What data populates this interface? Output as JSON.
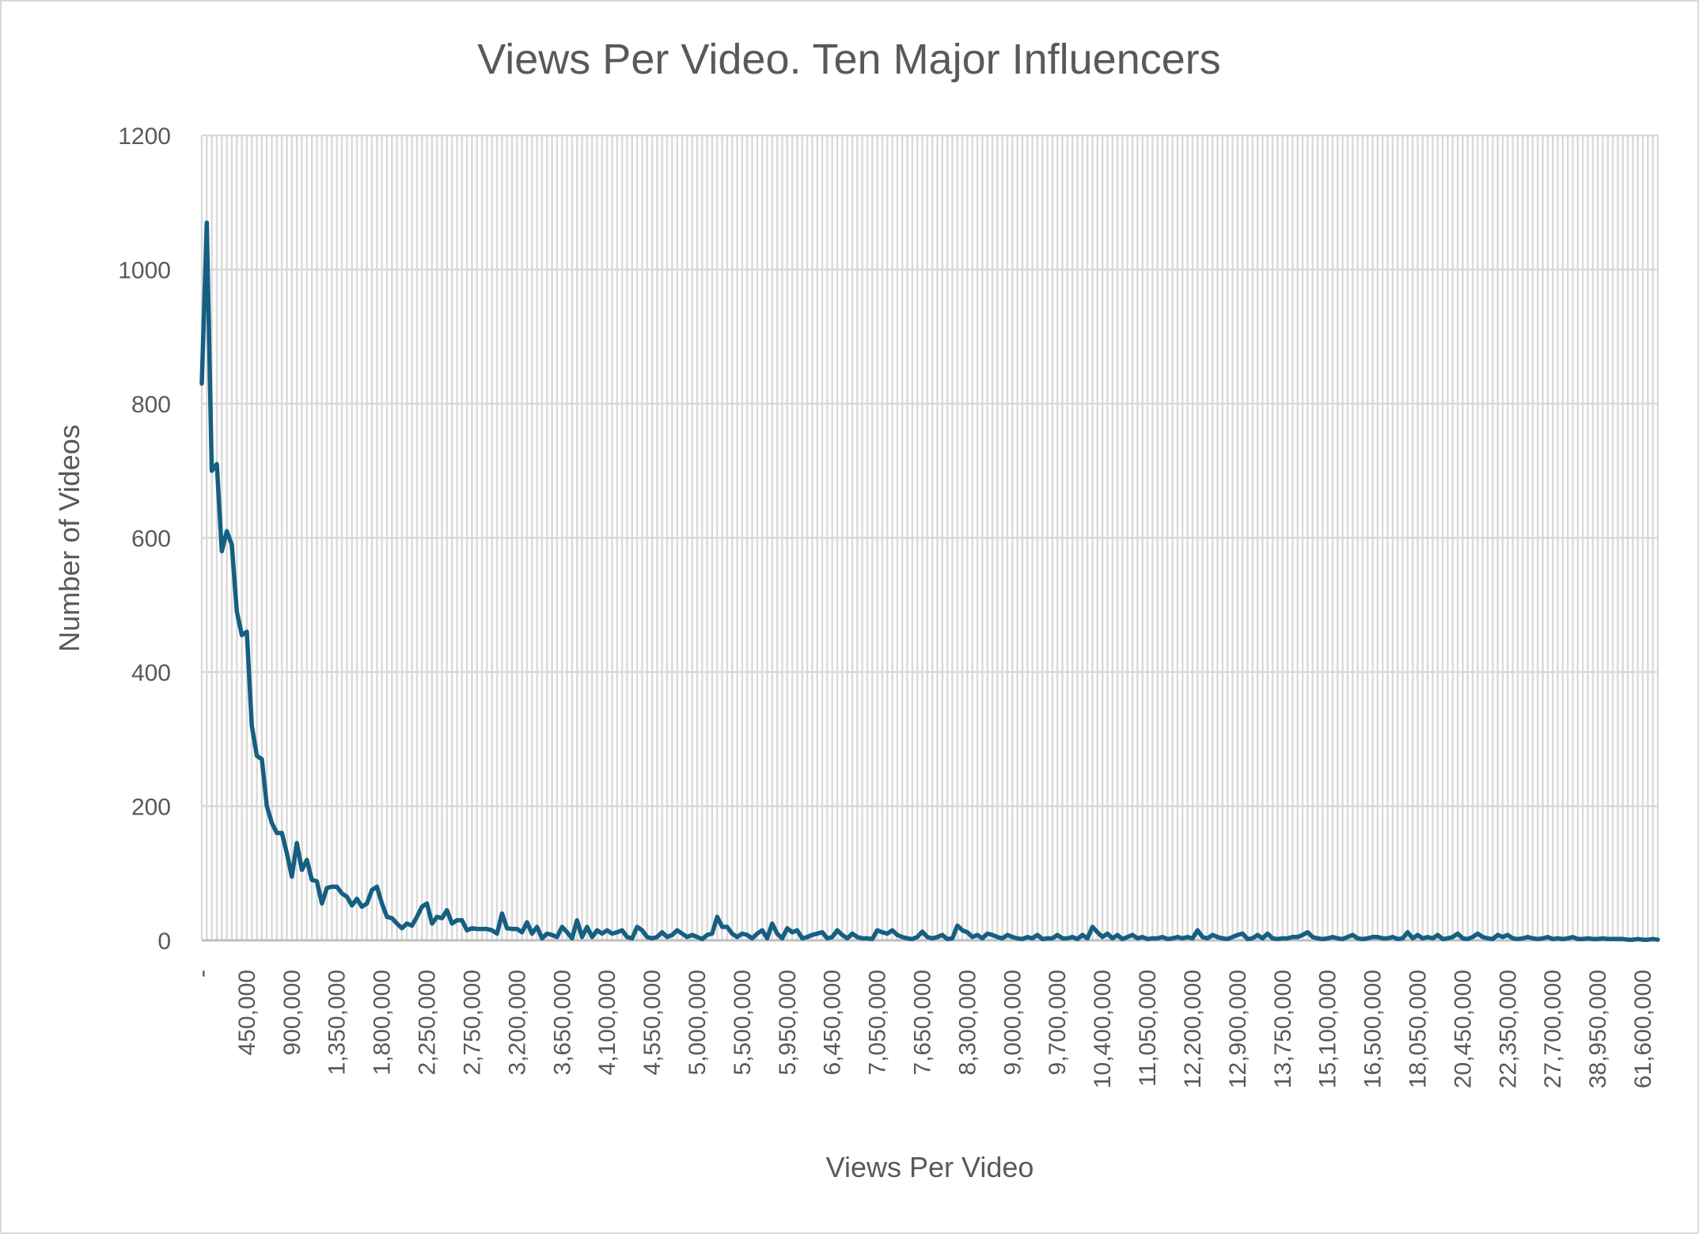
{
  "chart_data": {
    "type": "line",
    "title": "Views Per Video. Ten Major Influencers",
    "xlabel": "Views Per Video",
    "ylabel": "Number of Videos",
    "ylim": [
      0,
      1200
    ],
    "y_ticks": [
      "0",
      "200",
      "400",
      "600",
      "800",
      "1000",
      "1200"
    ],
    "y_tick_values": [
      0,
      200,
      400,
      600,
      800,
      1000,
      1200
    ],
    "x_tick_every": 9,
    "x_tick_labels": [
      "-",
      "450,000",
      "900,000",
      "1,350,000",
      "1,800,000",
      "2,250,000",
      "2,750,000",
      "3,200,000",
      "3,650,000",
      "4,100,000",
      "4,550,000",
      "5,000,000",
      "5,500,000",
      "5,950,000",
      "6,450,000",
      "7,050,000",
      "7,650,000",
      "8,300,000",
      "9,000,000",
      "9,700,000",
      "10,400,000",
      "11,050,000",
      "12,200,000",
      "12,900,000",
      "13,750,000",
      "15,100,000",
      "16,500,000",
      "18,050,000",
      "20,450,000",
      "22,350,000",
      "27,700,000",
      "38,950,000",
      "61,600,000"
    ],
    "grid": {
      "horizontal": true,
      "vertical": true
    },
    "legend": "none",
    "series": [
      {
        "name": "Number of Videos",
        "color": "#155f82",
        "values": [
          830,
          1070,
          700,
          710,
          580,
          610,
          590,
          490,
          455,
          460,
          320,
          275,
          270,
          200,
          175,
          160,
          160,
          130,
          95,
          145,
          105,
          120,
          90,
          88,
          55,
          78,
          80,
          80,
          70,
          65,
          52,
          62,
          50,
          55,
          75,
          80,
          55,
          35,
          33,
          25,
          18,
          25,
          22,
          35,
          50,
          55,
          25,
          35,
          33,
          45,
          25,
          30,
          30,
          15,
          18,
          17,
          17,
          17,
          15,
          10,
          40,
          18,
          17,
          17,
          12,
          27,
          10,
          20,
          3,
          10,
          8,
          5,
          20,
          12,
          3,
          30,
          5,
          20,
          5,
          15,
          10,
          15,
          10,
          12,
          15,
          5,
          3,
          20,
          15,
          5,
          3,
          5,
          12,
          5,
          8,
          15,
          10,
          5,
          8,
          5,
          2,
          8,
          10,
          35,
          20,
          20,
          10,
          5,
          10,
          8,
          3,
          10,
          15,
          3,
          25,
          10,
          3,
          18,
          12,
          15,
          3,
          5,
          8,
          10,
          12,
          3,
          5,
          15,
          8,
          3,
          10,
          5,
          3,
          3,
          2,
          15,
          12,
          10,
          15,
          8,
          5,
          3,
          2,
          5,
          13,
          5,
          3,
          5,
          8,
          2,
          3,
          22,
          15,
          12,
          5,
          8,
          3,
          10,
          8,
          5,
          3,
          8,
          5,
          3,
          2,
          5,
          3,
          8,
          2,
          3,
          3,
          8,
          3,
          3,
          5,
          2,
          8,
          3,
          20,
          12,
          5,
          10,
          3,
          8,
          2,
          5,
          8,
          3,
          5,
          2,
          3,
          3,
          5,
          2,
          3,
          5,
          3,
          5,
          3,
          15,
          5,
          3,
          8,
          5,
          3,
          2,
          5,
          8,
          10,
          2,
          3,
          8,
          3,
          10,
          3,
          2,
          3,
          3,
          5,
          5,
          8,
          12,
          5,
          3,
          2,
          3,
          5,
          3,
          2,
          5,
          8,
          3,
          2,
          3,
          5,
          5,
          3,
          3,
          5,
          2,
          3,
          12,
          3,
          8,
          3,
          5,
          3,
          8,
          2,
          3,
          5,
          10,
          3,
          2,
          5,
          10,
          5,
          3,
          2,
          8,
          5,
          8,
          3,
          2,
          3,
          5,
          3,
          2,
          3,
          5,
          2,
          3,
          2,
          3,
          5,
          2,
          2,
          3,
          2,
          2,
          3,
          2,
          2,
          2,
          2,
          1,
          1,
          2,
          1,
          1,
          2,
          1
        ]
      }
    ],
    "colors": {
      "line": "#155f82",
      "grid": "#d9d9d9",
      "text": "#595959",
      "axis": "#bfbfbf"
    }
  }
}
